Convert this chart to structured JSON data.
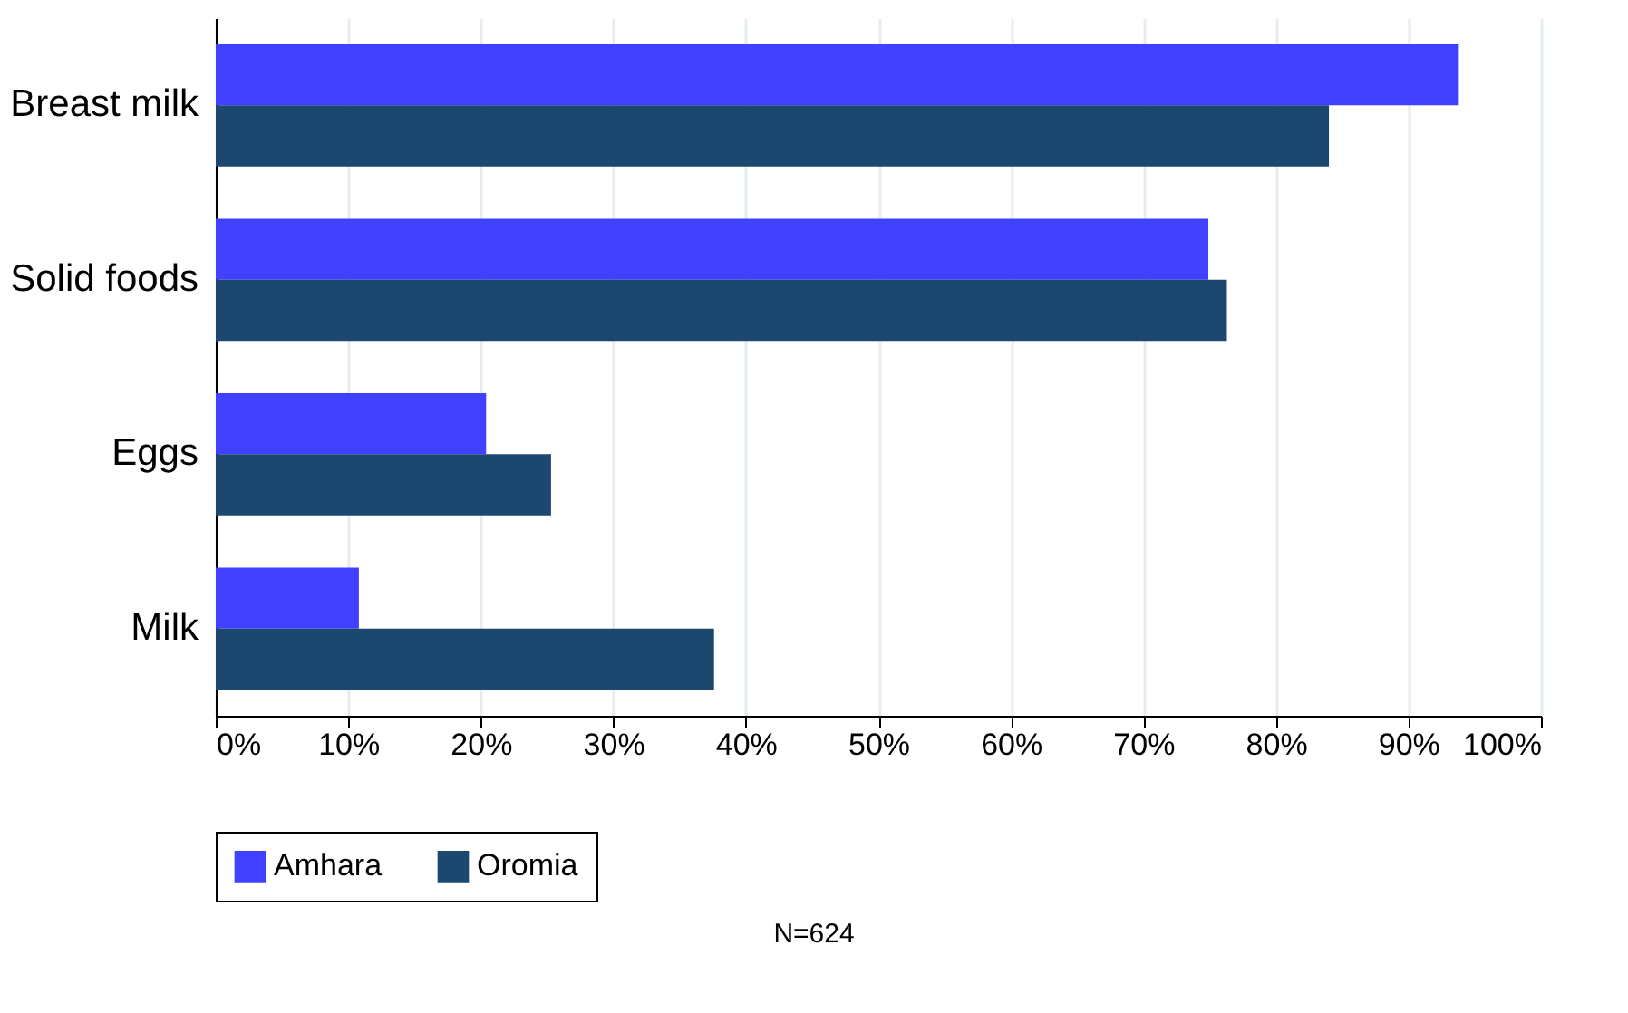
{
  "chart_data": {
    "type": "bar",
    "orientation": "horizontal",
    "categories": [
      "Breast milk",
      "Solid foods",
      "Eggs",
      "Milk"
    ],
    "series": [
      {
        "name": "Amhara",
        "color": "#4040ff",
        "values": [
          93.8,
          74.9,
          20.4,
          10.8
        ]
      },
      {
        "name": "Oromia",
        "color": "#1c4870",
        "values": [
          84.0,
          76.3,
          25.3,
          37.6
        ]
      }
    ],
    "xlim": [
      0,
      100
    ],
    "xticks": [
      {
        "value": 0,
        "label": "0%"
      },
      {
        "value": 10,
        "label": "10%"
      },
      {
        "value": 20,
        "label": "20%"
      },
      {
        "value": 30,
        "label": "30%"
      },
      {
        "value": 40,
        "label": "40%"
      },
      {
        "value": 50,
        "label": "50%"
      },
      {
        "value": 60,
        "label": "60%"
      },
      {
        "value": 70,
        "label": "70%"
      },
      {
        "value": 80,
        "label": "80%"
      },
      {
        "value": 90,
        "label": "90%"
      },
      {
        "value": 100,
        "label": "100%"
      }
    ],
    "grid": "x",
    "legend": "bottom",
    "annotations": [
      "N=624"
    ]
  }
}
